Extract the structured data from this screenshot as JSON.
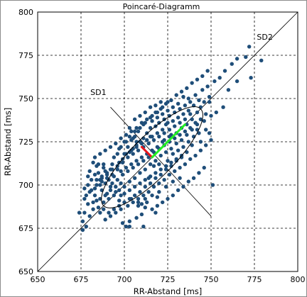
{
  "chart_data": {
    "type": "scatter",
    "title": "Poincaré-Diagramm",
    "xlabel": "RR-Abstand [ms]",
    "ylabel": "RR-Abstand [ms]",
    "xlim": [
      650,
      800
    ],
    "ylim": [
      650,
      800
    ],
    "x_ticks": [
      650,
      675,
      700,
      725,
      750,
      775,
      800
    ],
    "y_ticks": [
      650,
      675,
      700,
      725,
      750,
      775,
      800
    ],
    "grid": true,
    "grid_style": "dashed",
    "point_color": "#1f4e79",
    "annotations": [
      {
        "label": "SD1",
        "x": 685,
        "y": 752
      },
      {
        "label": "SD2",
        "x": 781,
        "y": 784
      }
    ],
    "identity_line": {
      "from": [
        650,
        650
      ],
      "to": [
        800,
        800
      ]
    },
    "perpendicular_line": {
      "from": [
        692,
        745
      ],
      "to": [
        750,
        682
      ]
    },
    "ellipse": {
      "center": [
        716,
        716
      ],
      "sd1": 8.5,
      "sd2": 28
    },
    "sd1_segment": {
      "from": [
        716,
        716
      ],
      "to": [
        710,
        722
      ],
      "color": "#e8141b"
    },
    "sd2_segment": {
      "from": [
        716,
        716
      ],
      "to": [
        735,
        735
      ],
      "color": "#22ee22"
    },
    "points": [
      [
        676,
        674
      ],
      [
        678,
        676
      ],
      [
        676,
        679
      ],
      [
        680,
        682
      ],
      [
        677,
        684
      ],
      [
        682,
        686
      ],
      [
        679,
        689
      ],
      [
        684,
        691
      ],
      [
        678,
        694
      ],
      [
        681,
        697
      ],
      [
        677,
        698
      ],
      [
        683,
        698
      ],
      [
        686,
        700
      ],
      [
        679,
        700
      ],
      [
        684,
        703
      ],
      [
        687,
        704
      ],
      [
        690,
        706
      ],
      [
        685,
        707
      ],
      [
        689,
        708
      ],
      [
        692,
        709
      ],
      [
        688,
        712
      ],
      [
        693,
        712
      ],
      [
        697,
        713
      ],
      [
        694,
        716
      ],
      [
        699,
        715
      ],
      [
        700,
        718
      ],
      [
        697,
        721
      ],
      [
        703,
        719
      ],
      [
        702,
        722
      ],
      [
        705,
        721
      ],
      [
        701,
        725
      ],
      [
        707,
        723
      ],
      [
        704,
        726
      ],
      [
        709,
        725
      ],
      [
        706,
        728
      ],
      [
        711,
        727
      ],
      [
        708,
        731
      ],
      [
        713,
        730
      ],
      [
        715,
        733
      ],
      [
        711,
        735
      ],
      [
        718,
        734
      ],
      [
        716,
        737
      ],
      [
        720,
        736
      ],
      [
        719,
        739
      ],
      [
        723,
        738
      ],
      [
        722,
        741
      ],
      [
        726,
        740
      ],
      [
        725,
        743
      ],
      [
        729,
        742
      ],
      [
        728,
        745
      ],
      [
        732,
        744
      ],
      [
        731,
        747
      ],
      [
        735,
        746
      ],
      [
        738,
        748
      ],
      [
        734,
        751
      ],
      [
        737,
        750
      ],
      [
        741,
        752
      ],
      [
        745,
        755
      ],
      [
        748,
        757
      ],
      [
        752,
        760
      ],
      [
        755,
        762
      ],
      [
        758,
        766
      ],
      [
        762,
        770
      ],
      [
        765,
        773
      ],
      [
        770,
        774
      ],
      [
        772,
        780
      ],
      [
        779,
        772
      ],
      [
        773,
        762
      ],
      [
        765,
        760
      ],
      [
        760,
        755
      ],
      [
        757,
        745
      ],
      [
        753,
        742
      ],
      [
        749,
        748
      ],
      [
        750,
        740
      ],
      [
        746,
        737
      ],
      [
        742,
        735
      ],
      [
        739,
        732
      ],
      [
        736,
        729
      ],
      [
        733,
        726
      ],
      [
        730,
        724
      ],
      [
        727,
        721
      ],
      [
        724,
        719
      ],
      [
        721,
        717
      ],
      [
        718,
        714
      ],
      [
        715,
        712
      ],
      [
        712,
        709
      ],
      [
        709,
        707
      ],
      [
        706,
        704
      ],
      [
        703,
        702
      ],
      [
        700,
        699
      ],
      [
        697,
        697
      ],
      [
        694,
        694
      ],
      [
        691,
        692
      ],
      [
        688,
        690
      ],
      [
        685,
        687
      ],
      [
        682,
        690
      ],
      [
        686,
        684
      ],
      [
        689,
        680
      ],
      [
        692,
        682
      ],
      [
        695,
        684
      ],
      [
        698,
        686
      ],
      [
        702,
        688
      ],
      [
        705,
        690
      ],
      [
        708,
        692
      ],
      [
        711,
        694
      ],
      [
        714,
        696
      ],
      [
        717,
        699
      ],
      [
        720,
        701
      ],
      [
        723,
        703
      ],
      [
        726,
        706
      ],
      [
        729,
        708
      ],
      [
        732,
        710
      ],
      [
        735,
        712
      ],
      [
        738,
        715
      ],
      [
        741,
        717
      ],
      [
        744,
        720
      ],
      [
        747,
        723
      ],
      [
        750,
        726
      ],
      [
        742,
        732
      ],
      [
        744,
        725
      ],
      [
        739,
        723
      ],
      [
        736,
        719
      ],
      [
        733,
        716
      ],
      [
        730,
        714
      ],
      [
        727,
        711
      ],
      [
        724,
        709
      ],
      [
        721,
        706
      ],
      [
        718,
        704
      ],
      [
        715,
        701
      ],
      [
        712,
        699
      ],
      [
        709,
        696
      ],
      [
        706,
        694
      ],
      [
        703,
        692
      ],
      [
        700,
        690
      ],
      [
        697,
        688
      ],
      [
        694,
        686
      ],
      [
        691,
        684
      ],
      [
        688,
        686
      ],
      [
        701,
        676
      ],
      [
        703,
        679
      ],
      [
        699,
        678
      ],
      [
        707,
        681
      ],
      [
        710,
        683
      ],
      [
        712,
        687
      ],
      [
        716,
        686
      ],
      [
        719,
        688
      ],
      [
        722,
        690
      ],
      [
        713,
        690
      ],
      [
        710,
        689
      ],
      [
        708,
        688
      ],
      [
        725,
        692
      ],
      [
        728,
        694
      ],
      [
        731,
        697
      ],
      [
        734,
        699
      ],
      [
        737,
        702
      ],
      [
        740,
        704
      ],
      [
        743,
        707
      ],
      [
        746,
        710
      ],
      [
        732,
        704
      ],
      [
        728,
        702
      ],
      [
        724,
        699
      ],
      [
        720,
        696
      ],
      [
        716,
        694
      ],
      [
        712,
        692
      ],
      [
        708,
        690
      ],
      [
        704,
        692
      ],
      [
        698,
        694
      ],
      [
        695,
        696
      ],
      [
        692,
        699
      ],
      [
        689,
        701
      ],
      [
        686,
        703
      ],
      [
        683,
        706
      ],
      [
        680,
        708
      ],
      [
        687,
        697
      ],
      [
        690,
        695
      ],
      [
        693,
        701
      ],
      [
        696,
        703
      ],
      [
        699,
        706
      ],
      [
        702,
        708
      ],
      [
        705,
        710
      ],
      [
        708,
        712
      ],
      [
        711,
        714
      ],
      [
        714,
        716
      ],
      [
        717,
        719
      ],
      [
        720,
        721
      ],
      [
        723,
        723
      ],
      [
        726,
        725
      ],
      [
        729,
        727
      ],
      [
        732,
        729
      ],
      [
        735,
        731
      ],
      [
        738,
        733
      ],
      [
        741,
        736
      ],
      [
        744,
        738
      ],
      [
        747,
        741
      ],
      [
        738,
        741
      ],
      [
        735,
        738
      ],
      [
        732,
        736
      ],
      [
        729,
        734
      ],
      [
        726,
        732
      ],
      [
        723,
        730
      ],
      [
        720,
        728
      ],
      [
        717,
        726
      ],
      [
        714,
        724
      ],
      [
        711,
        722
      ],
      [
        708,
        720
      ],
      [
        705,
        718
      ],
      [
        702,
        716
      ],
      [
        699,
        713
      ],
      [
        696,
        711
      ],
      [
        693,
        709
      ],
      [
        690,
        707
      ],
      [
        687,
        705
      ],
      [
        684,
        711
      ],
      [
        682,
        713
      ],
      [
        696,
        718
      ],
      [
        698,
        722
      ],
      [
        700,
        725
      ],
      [
        703,
        728
      ],
      [
        706,
        731
      ],
      [
        709,
        733
      ],
      [
        712,
        736
      ],
      [
        715,
        739
      ],
      [
        718,
        742
      ],
      [
        721,
        744
      ],
      [
        724,
        747
      ],
      [
        727,
        749
      ],
      [
        730,
        752
      ],
      [
        733,
        754
      ],
      [
        736,
        756
      ],
      [
        739,
        759
      ],
      [
        742,
        761
      ],
      [
        745,
        763
      ],
      [
        748,
        766
      ],
      [
        724,
        735
      ],
      [
        722,
        732
      ],
      [
        719,
        730
      ],
      [
        716,
        728
      ],
      [
        713,
        726
      ],
      [
        710,
        724
      ],
      [
        707,
        722
      ],
      [
        704,
        720
      ],
      [
        701,
        718
      ],
      [
        698,
        708
      ],
      [
        694,
        705
      ],
      [
        691,
        703
      ],
      [
        688,
        710
      ],
      [
        685,
        712
      ],
      [
        683,
        716
      ],
      [
        686,
        718
      ],
      [
        689,
        720
      ],
      [
        692,
        722
      ],
      [
        695,
        724
      ],
      [
        698,
        727
      ],
      [
        701,
        729
      ],
      [
        704,
        731
      ],
      [
        707,
        733
      ],
      [
        710,
        736
      ],
      [
        713,
        738
      ],
      [
        716,
        740
      ],
      [
        719,
        742
      ],
      [
        722,
        745
      ],
      [
        725,
        748
      ],
      [
        751,
        700
      ],
      [
        749,
        730
      ],
      [
        742,
        742
      ],
      [
        744,
        745
      ],
      [
        740,
        746
      ],
      [
        737,
        743
      ],
      [
        734,
        741
      ],
      [
        731,
        739
      ],
      [
        728,
        737
      ],
      [
        725,
        736
      ],
      [
        722,
        725
      ],
      [
        719,
        722
      ],
      [
        716,
        720
      ],
      [
        713,
        718
      ],
      [
        710,
        716
      ],
      [
        707,
        714
      ],
      [
        704,
        712
      ],
      [
        701,
        710
      ],
      [
        698,
        701
      ],
      [
        695,
        699
      ],
      [
        692,
        697
      ],
      [
        689,
        694
      ],
      [
        686,
        692
      ],
      [
        683,
        694
      ],
      [
        680,
        696
      ],
      [
        677,
        692
      ],
      [
        674,
        684
      ],
      [
        703,
        676
      ],
      [
        711,
        676
      ],
      [
        718,
        684
      ],
      [
        719,
        693
      ],
      [
        714,
        704
      ],
      [
        717,
        711
      ],
      [
        720,
        712
      ],
      [
        725,
        714
      ],
      [
        728,
        718
      ],
      [
        731,
        720
      ],
      [
        734,
        722
      ],
      [
        737,
        725
      ],
      [
        740,
        728
      ],
      [
        743,
        730
      ],
      [
        747,
        732
      ],
      [
        726,
        728
      ],
      [
        723,
        726
      ],
      [
        703,
        733
      ],
      [
        706,
        738
      ],
      [
        709,
        740
      ],
      [
        712,
        742
      ],
      [
        715,
        745
      ],
      [
        718,
        746
      ],
      [
        721,
        748
      ],
      [
        749,
        751
      ],
      [
        746,
        748
      ],
      [
        743,
        749
      ],
      [
        739,
        738
      ],
      [
        736,
        735
      ],
      [
        733,
        733
      ],
      [
        730,
        730
      ],
      [
        727,
        729
      ],
      [
        715,
        728
      ],
      [
        707,
        725
      ],
      [
        705,
        727
      ],
      [
        696,
        709
      ],
      [
        693,
        706
      ],
      [
        690,
        704
      ],
      [
        687,
        702
      ],
      [
        684,
        700
      ],
      [
        681,
        703
      ],
      [
        679,
        705
      ],
      [
        697,
        691
      ],
      [
        700,
        695
      ],
      [
        703,
        697
      ],
      [
        706,
        699
      ],
      [
        709,
        701
      ],
      [
        712,
        703
      ],
      [
        715,
        705
      ],
      [
        718,
        707
      ],
      [
        721,
        709
      ],
      [
        724,
        711
      ],
      [
        727,
        713
      ],
      [
        730,
        715
      ],
      [
        733,
        717
      ]
    ]
  }
}
